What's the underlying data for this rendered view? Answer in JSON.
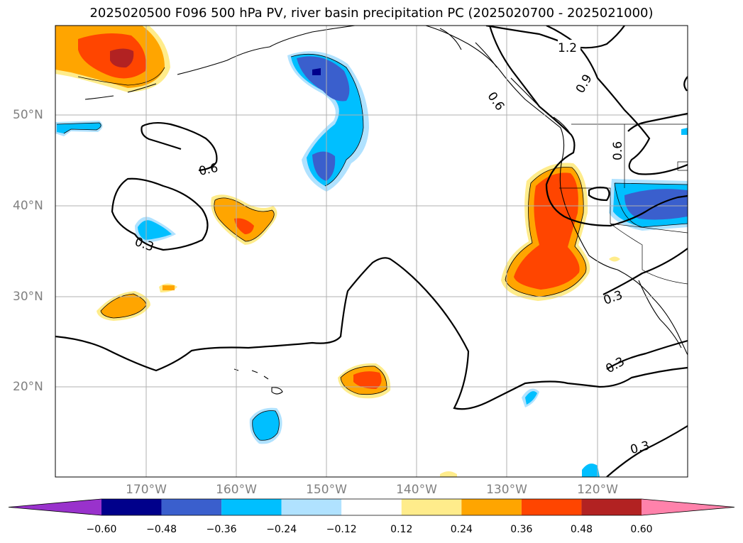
{
  "title": "2025020500 F096 500 hPa PV, river basin precipitation PC (2025020700 - 2025021000)",
  "lat_labels": [
    "50°N",
    "40°N",
    "30°N",
    "20°N"
  ],
  "lon_labels": [
    "170°W",
    "160°W",
    "150°W",
    "140°W",
    "130°W",
    "120°W"
  ],
  "contour_labels": [
    "1.2",
    "0.9",
    "0.6",
    "0.6",
    "0.6",
    "0.3",
    "0.3",
    "0.3",
    "0.3"
  ],
  "colorbar": {
    "ticks": [
      "−0.60",
      "−0.48",
      "−0.36",
      "−0.24",
      "−0.12",
      "0.12",
      "0.24",
      "0.36",
      "0.48",
      "0.60"
    ],
    "colors": [
      "#9932cc",
      "#00008b",
      "#3a5fcd",
      "#00bfff",
      "#b0e2ff",
      "#ffffff",
      "#ffec8b",
      "#ffa500",
      "#ff4500",
      "#b22222",
      "#ff82ab"
    ]
  },
  "colors": {
    "neg_strong": "#00008b",
    "neg_mid": "#3a5fcd",
    "neg_light": "#00bfff",
    "neg_faint": "#b0e2ff",
    "pos_faint": "#ffec8b",
    "pos_light": "#ffa500",
    "pos_mid": "#ff4500",
    "pos_strong": "#b22222"
  }
}
